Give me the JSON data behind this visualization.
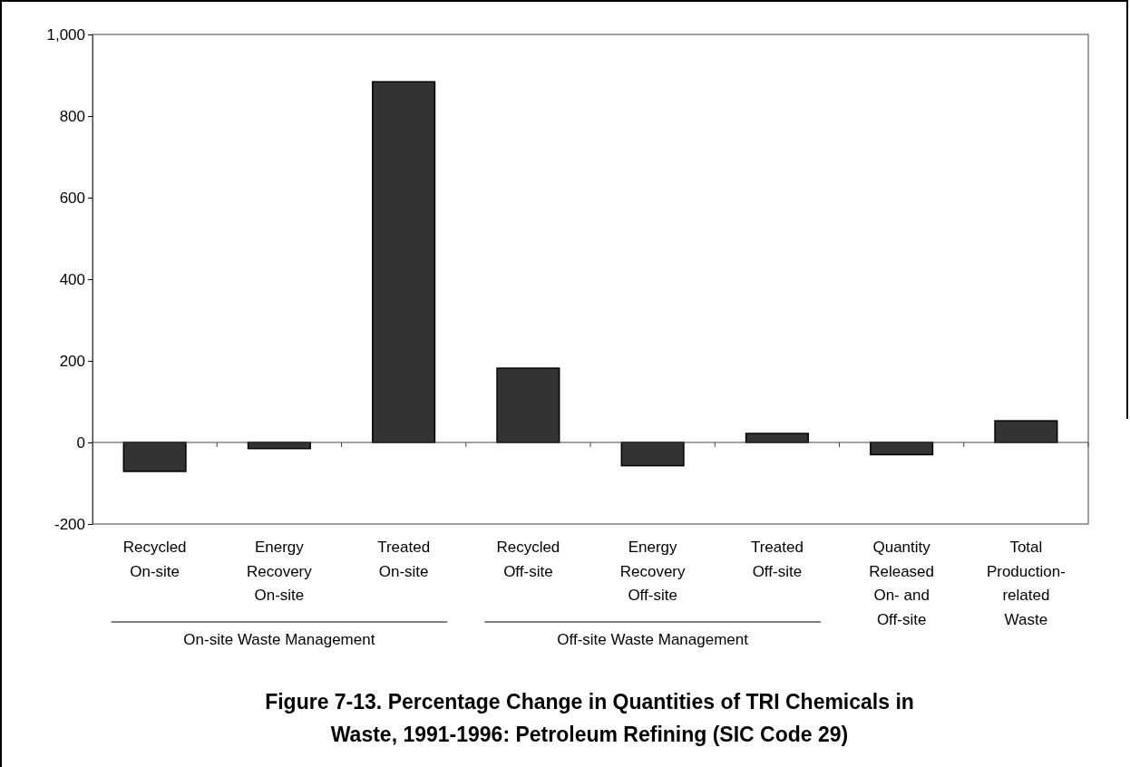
{
  "chart_data": {
    "type": "bar",
    "title": "Figure 7-13.  Percentage Change in Quantities of TRI Chemicals in\nWaste, 1991-1996: Petroleum Refining (SIC Code 29)",
    "categories": [
      "Recycled\nOn-site",
      "Energy\nRecovery\nOn-site",
      "Treated\nOn-site",
      "Recycled\nOff-site",
      "Energy\nRecovery\nOff-site",
      "Treated\nOff-site",
      "Quantity\nReleased\nOn- and\nOff-site",
      "Total\nProduction-\nrelated\nWaste"
    ],
    "values": [
      -71,
      -15,
      884,
      182,
      -57,
      22,
      -30,
      53
    ],
    "color": "#333333",
    "ylim": [
      -200,
      1000
    ],
    "yticks": [
      -200,
      0,
      200,
      400,
      600,
      800,
      {
        "value": 1000,
        "label": "1,000"
      }
    ],
    "annotations": [
      "On-site Waste Management",
      "Off-site Waste Management"
    ]
  }
}
